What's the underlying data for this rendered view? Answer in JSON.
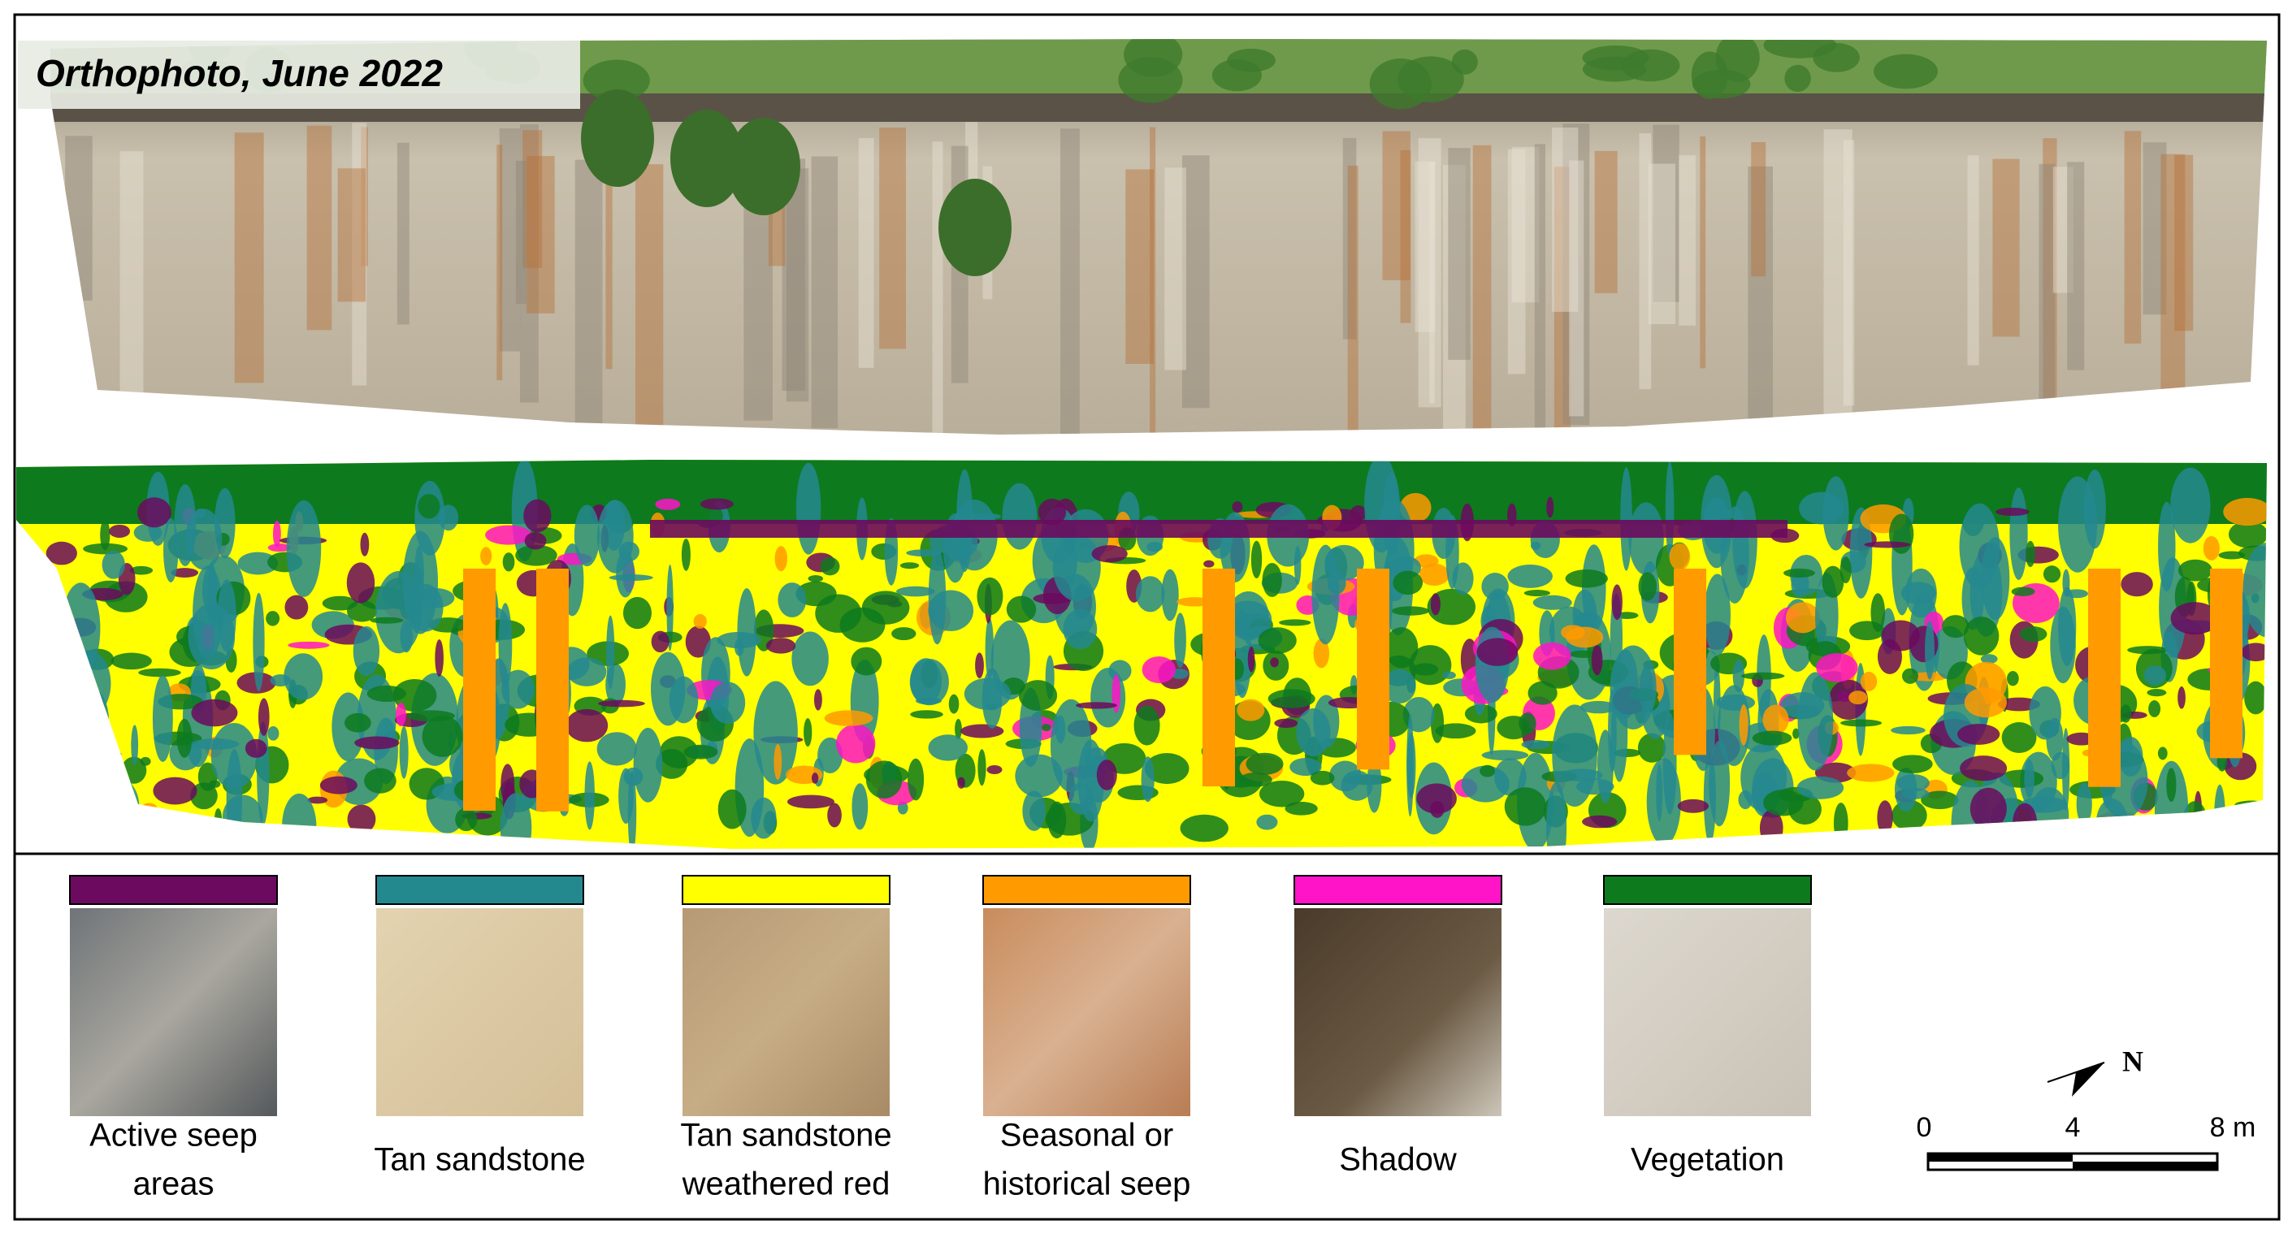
{
  "photo_title": "Orthophoto, June 2022",
  "legend": [
    {
      "lines": [
        "Active seep",
        "areas"
      ],
      "color": "#6b0a5e"
    },
    {
      "lines": [
        "Tan sandstone"
      ],
      "color": "#24888f"
    },
    {
      "lines": [
        "Tan sandstone",
        "weathered red"
      ],
      "color": "#ffff00"
    },
    {
      "lines": [
        "Seasonal or",
        "historical seep"
      ],
      "color": "#ff9a00"
    },
    {
      "lines": [
        "Shadow"
      ],
      "color": "#ff14c8"
    },
    {
      "lines": [
        "Vegetation"
      ],
      "color": "#0d7a1e"
    }
  ],
  "scale_bar": {
    "labels": [
      "0",
      "4",
      "8 m"
    ]
  },
  "north_label": "N"
}
